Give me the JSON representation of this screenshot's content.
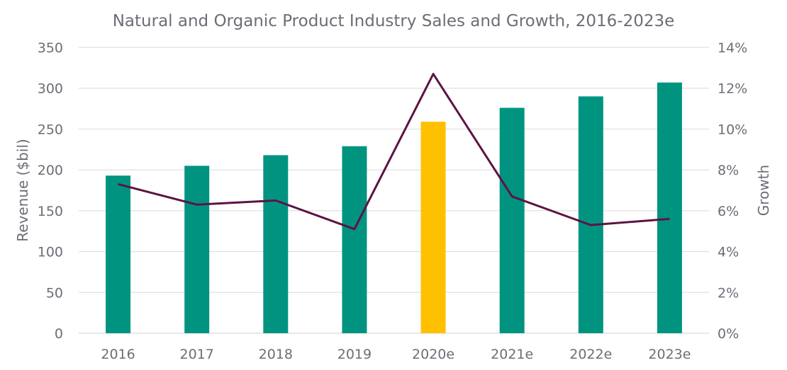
{
  "chart_data": {
    "type": "bar",
    "title": "Natural and Organic Product Industry Sales and Growth, 2016-2023e",
    "categories": [
      "2016",
      "2017",
      "2018",
      "2019",
      "2020e",
      "2021e",
      "2022e",
      "2023e"
    ],
    "series": [
      {
        "name": "Revenue",
        "type": "bar",
        "axis": "left",
        "values": [
          193,
          205,
          218,
          229,
          259,
          276,
          290,
          307
        ],
        "colors": [
          "#009480",
          "#009480",
          "#009480",
          "#009480",
          "#FFC000",
          "#009480",
          "#009480",
          "#009480"
        ]
      },
      {
        "name": "Growth",
        "type": "line",
        "axis": "right",
        "values": [
          7.3,
          6.3,
          6.5,
          5.1,
          12.7,
          6.7,
          5.3,
          5.6
        ],
        "color": "#5C1443"
      }
    ],
    "ylabel": "Revenue ($bil)",
    "ylim": [
      0,
      350
    ],
    "yticks": [
      "0",
      "50",
      "100",
      "150",
      "200",
      "250",
      "300",
      "350"
    ],
    "y2label": "Growth",
    "y2lim": [
      0,
      14
    ],
    "y2ticks": [
      "0%",
      "2%",
      "4%",
      "6%",
      "8%",
      "10%",
      "12%",
      "14%"
    ],
    "grid": true,
    "legend": "none"
  }
}
